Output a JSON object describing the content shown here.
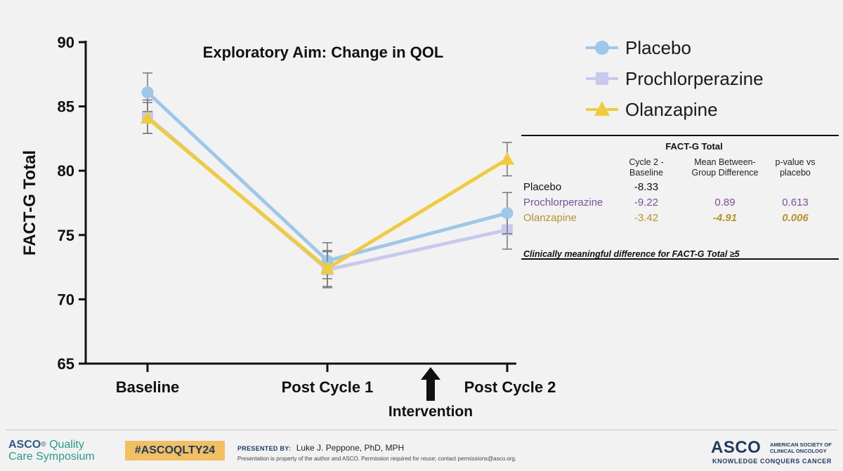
{
  "chart_data": {
    "type": "line",
    "title": "Exploratory Aim: Change in QOL",
    "ylabel": "FACT-G Total",
    "xlabel": "",
    "ylim": [
      65,
      90
    ],
    "yticks": [
      "65",
      "70",
      "75",
      "80",
      "85",
      "90"
    ],
    "categories": [
      "Baseline",
      "Post Cycle 1",
      "Post Cycle 2"
    ],
    "annotation": "Intervention",
    "grid": false,
    "legend_position": "top-right",
    "series": [
      {
        "name": "Placebo",
        "marker": "circle",
        "color": "#9ec8ea",
        "values": [
          86.1,
          73.0,
          76.7
        ],
        "err": [
          1.5,
          1.4,
          1.6
        ]
      },
      {
        "name": "Prochlorperazine",
        "marker": "square",
        "color": "#c9c9ef",
        "values": [
          84.2,
          72.3,
          75.4
        ],
        "err": [
          1.3,
          1.4,
          1.5
        ]
      },
      {
        "name": "Olanzapine",
        "marker": "triangle",
        "color": "#f0cb3c",
        "values": [
          84.1,
          72.4,
          80.9
        ],
        "err": [
          1.2,
          1.4,
          1.3
        ]
      }
    ]
  },
  "table": {
    "title": "FACT-G Total",
    "headers": [
      "Cycle 2 -\nBaseline",
      "Mean Between-\nGroup Difference",
      "p-value vs\nplacebo"
    ],
    "rows": [
      {
        "name": "Placebo",
        "c1": "-8.33",
        "c2": "",
        "c3": "",
        "color": "#111111"
      },
      {
        "name": "Prochlorperazine",
        "c1": "-9.22",
        "c2": "0.89",
        "c3": "0.613",
        "color": "#7b4f9e"
      },
      {
        "name": "Olanzapine",
        "c1": "-3.42",
        "c2": "-4.91",
        "c3": "0.006",
        "color": "#b8922a"
      }
    ],
    "footnote": "Clinically meaningful difference for FACT-G Total ≥5"
  },
  "footer": {
    "brand_asco": "ASCO",
    "brand_quality": "Quality",
    "brand_line2": "Care Symposium",
    "hashtag": "#ASCOQLTY24",
    "presented_by": "PRESENTED BY:",
    "presenter": "Luke J. Peppone, PhD, MPH",
    "disclaimer": "Presentation is property of the author and ASCO. Permission required for reuse; contact permissions@asco.org.",
    "asco_logo": "ASCO",
    "society": "AMERICAN SOCIETY OF CLINICAL ONCOLOGY",
    "tagline": "KNOWLEDGE CONQUERS CANCER"
  },
  "colors": {
    "accent_hashtag": "#f2c063",
    "brand_navy": "#1e3a5f",
    "brand_teal": "#2c9a8b"
  }
}
